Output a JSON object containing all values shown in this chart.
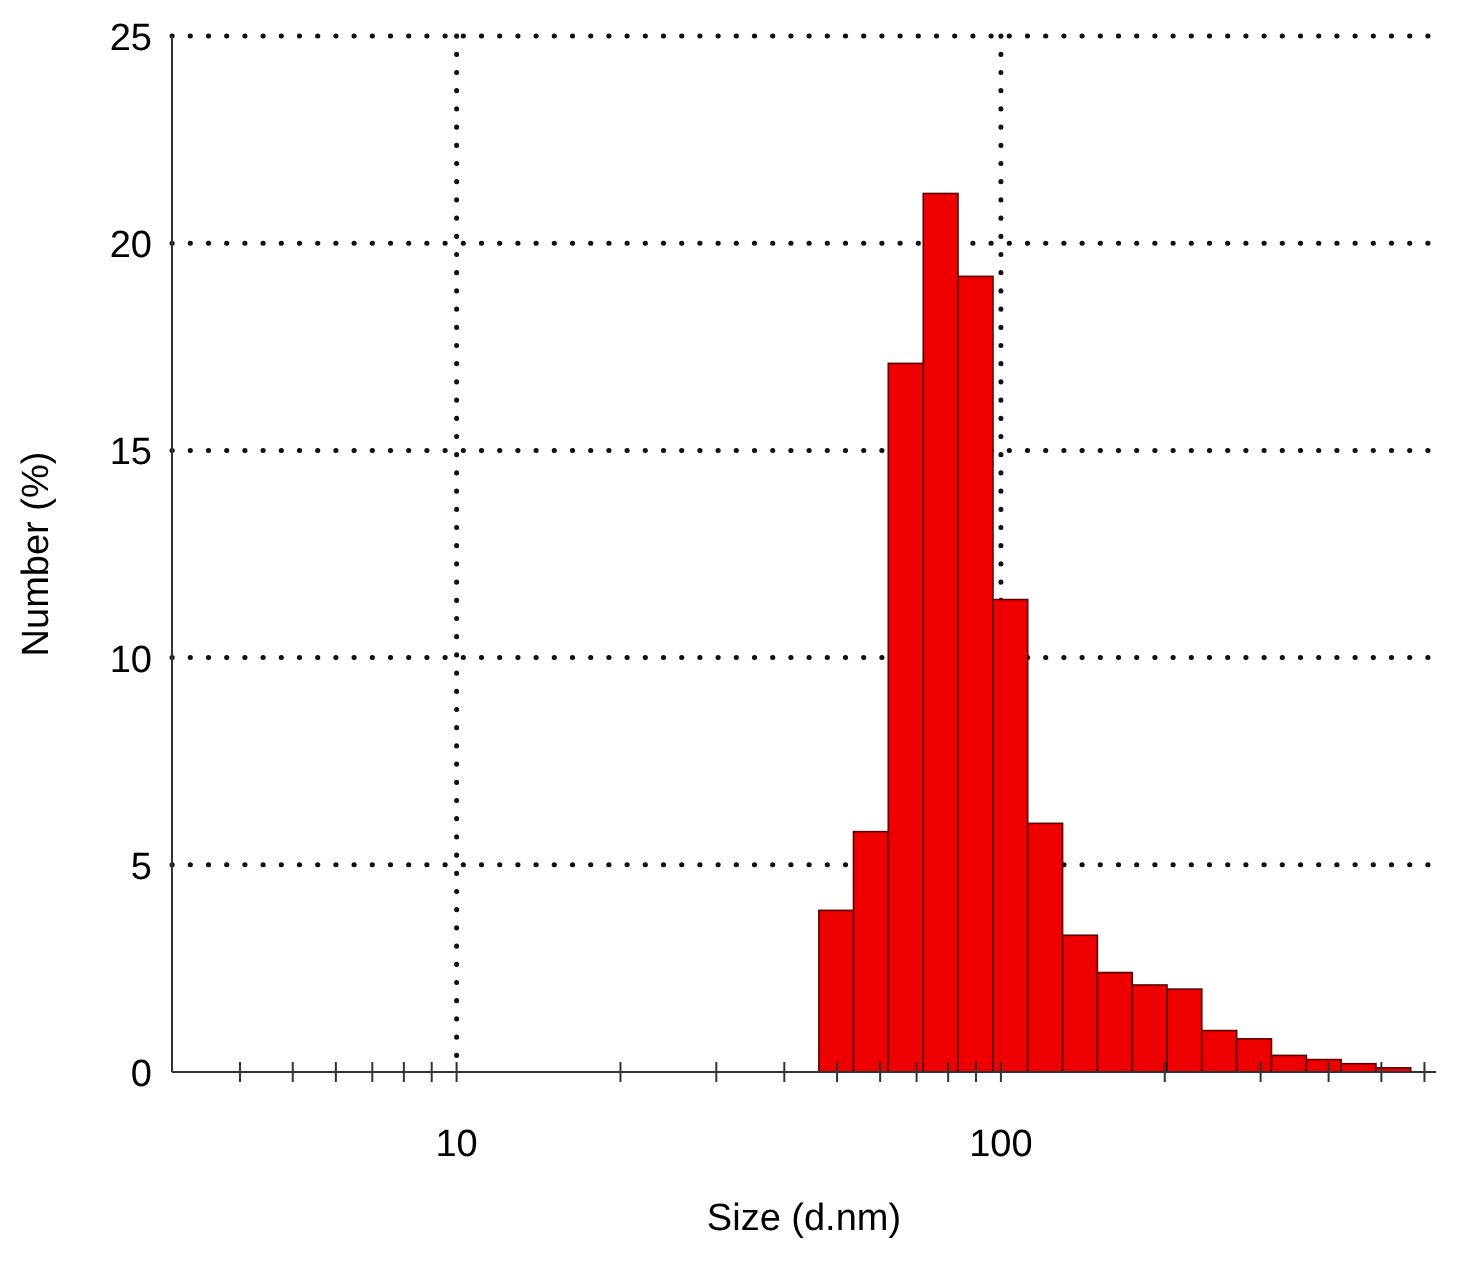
{
  "chart_data": {
    "type": "histogram",
    "xlabel": "Size (d.nm)",
    "ylabel": "Number (%)",
    "bins": [
      46.3,
      53.6,
      62.1,
      72.0,
      83.4,
      96.7,
      112.0,
      129.8,
      150.4,
      174.3,
      201.9,
      233.9,
      271.1,
      314.1,
      364.0,
      421.7,
      488.7,
      566.1
    ],
    "values": [
      3.9,
      5.8,
      17.1,
      21.2,
      19.2,
      11.4,
      6.0,
      3.3,
      2.4,
      2.1,
      2.0,
      1.0,
      0.8,
      0.4,
      0.3,
      0.2,
      0.1
    ],
    "color": "#ee0000",
    "log": "x",
    "xlim": [
      3,
      630
    ],
    "xticks": [
      {
        "value": 4,
        "label": null
      },
      {
        "value": 5,
        "label": null
      },
      {
        "value": 6,
        "label": null
      },
      {
        "value": 7,
        "label": null
      },
      {
        "value": 8,
        "label": null
      },
      {
        "value": 9,
        "label": null
      },
      10,
      {
        "value": 20,
        "label": null
      },
      {
        "value": 30,
        "label": null
      },
      {
        "value": 40,
        "label": null
      },
      {
        "value": 50,
        "label": null
      },
      {
        "value": 60,
        "label": null
      },
      {
        "value": 70,
        "label": null
      },
      {
        "value": 80,
        "label": null
      },
      {
        "value": 90,
        "label": null
      },
      100,
      {
        "value": 200,
        "label": null
      },
      {
        "value": 300,
        "label": null
      },
      {
        "value": 400,
        "label": null
      },
      {
        "value": 500,
        "label": null
      },
      {
        "value": 600,
        "label": null
      }
    ],
    "ylim": [
      0,
      25
    ],
    "yticks": [
      0,
      5,
      10,
      15,
      20,
      25
    ],
    "grid": true
  }
}
